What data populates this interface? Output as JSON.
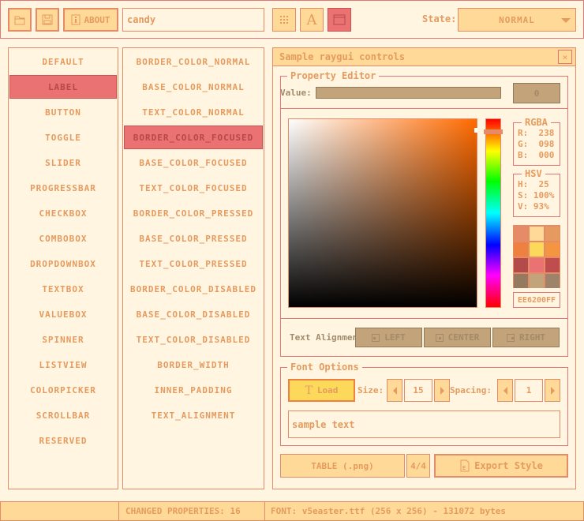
{
  "toolbar": {
    "about_label": "ABOUT",
    "style_name": "candy",
    "state_label": "State:",
    "state_value": "NORMAL"
  },
  "controls": [
    "DEFAULT",
    "LABEL",
    "BUTTON",
    "TOGGLE",
    "SLIDER",
    "PROGRESSBAR",
    "CHECKBOX",
    "COMBOBOX",
    "DROPDOWNBOX",
    "TEXTBOX",
    "VALUEBOX",
    "SPINNER",
    "LISTVIEW",
    "COLORPICKER",
    "SCROLLBAR",
    "RESERVED"
  ],
  "selected_control": "LABEL",
  "properties": [
    "BORDER_COLOR_NORMAL",
    "BASE_COLOR_NORMAL",
    "TEXT_COLOR_NORMAL",
    "BORDER_COLOR_FOCUSED",
    "BASE_COLOR_FOCUSED",
    "TEXT_COLOR_FOCUSED",
    "BORDER_COLOR_PRESSED",
    "BASE_COLOR_PRESSED",
    "TEXT_COLOR_PRESSED",
    "BORDER_COLOR_DISABLED",
    "BASE_COLOR_DISABLED",
    "TEXT_COLOR_DISABLED",
    "BORDER_WIDTH",
    "INNER_PADDING",
    "TEXT_ALIGNMENT"
  ],
  "selected_property": "BORDER_COLOR_FOCUSED",
  "window": {
    "title": "Sample raygui controls",
    "close": "×"
  },
  "property_editor": {
    "title": "Property Editor",
    "value_label": "Value:",
    "value": "0",
    "rgba": {
      "title": "RGBA",
      "r": "R:  238",
      "g": "G:  098",
      "b": "B:  000"
    },
    "hsv": {
      "title": "HSV",
      "h": "H:  25",
      "s": "S: 100%",
      "v": "V: 93%"
    },
    "hex": "EE6200FF",
    "hue": 25,
    "saturation": 100,
    "brightness": 93,
    "palette": [
      "#e58b68",
      "#ffd997",
      "#e59b5f",
      "#ee813f",
      "#fcd85b",
      "#f49641",
      "#b34b4b",
      "#eb7272",
      "#bf4d4d",
      "#947b60",
      "#c2a37a",
      "#9c8369"
    ],
    "text_alignment_label": "Text Alignment",
    "align": [
      "LEFT",
      "CENTER",
      "RIGHT"
    ]
  },
  "font_options": {
    "title": "Font Options",
    "load": "Load",
    "size_label": "Size:",
    "size": "15",
    "spacing_label": "Spacing:",
    "spacing": "1",
    "sample_text": "sample text"
  },
  "bottom": {
    "table": "TABLE (.png)",
    "page": "4/4",
    "export": "Export Style"
  },
  "status": {
    "left": "",
    "changed": "CHANGED PROPERTIES: 16",
    "font": "FONT: v5easter.ttf (256 x 256) - 131072 bytes"
  },
  "colors": {
    "bg": "#fff5e1",
    "border": "#e58b68",
    "text": "#e59b5f",
    "base": "#ffd997",
    "selected": "#eb7272",
    "disabled": "#c2a37a"
  }
}
